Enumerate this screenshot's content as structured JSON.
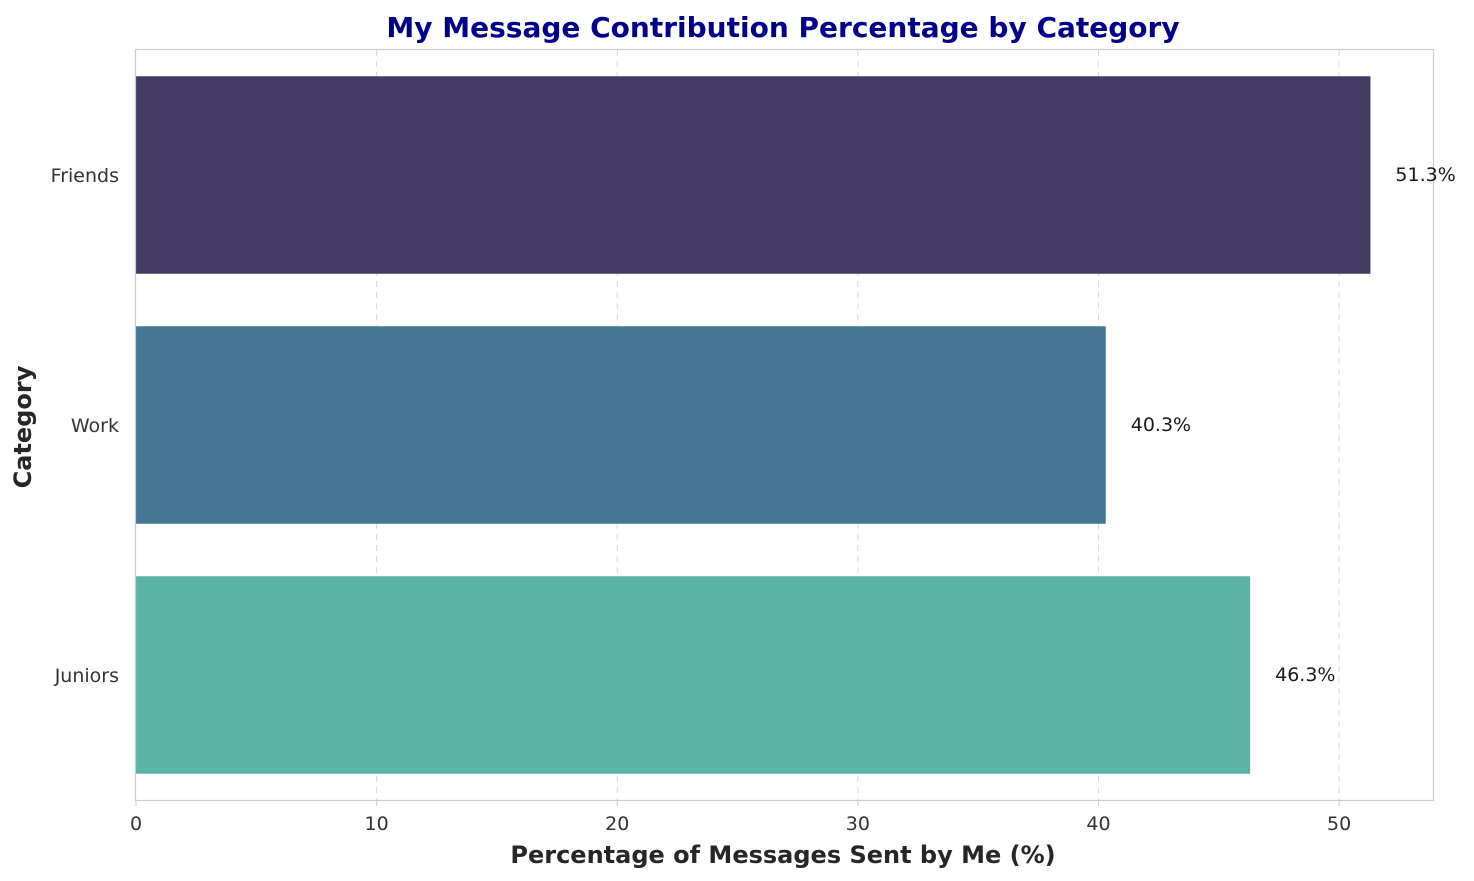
{
  "chart_data": {
    "type": "bar",
    "orientation": "horizontal",
    "title": "My Message Contribution Percentage by Category",
    "xlabel": "Percentage of Messages Sent by Me (%)",
    "ylabel": "Category",
    "categories": [
      "Friends",
      "Work",
      "Juniors"
    ],
    "values": [
      51.3,
      40.3,
      46.3
    ],
    "value_labels": [
      "51.3%",
      "40.3%",
      "46.3%"
    ],
    "colors": [
      "#443b63",
      "#457694",
      "#5ab3a3"
    ],
    "xlim": [
      0,
      53.9
    ],
    "xticks": [
      0,
      10,
      20,
      30,
      40,
      50
    ],
    "grid": "x-dashed",
    "title_color": "#00008b"
  }
}
